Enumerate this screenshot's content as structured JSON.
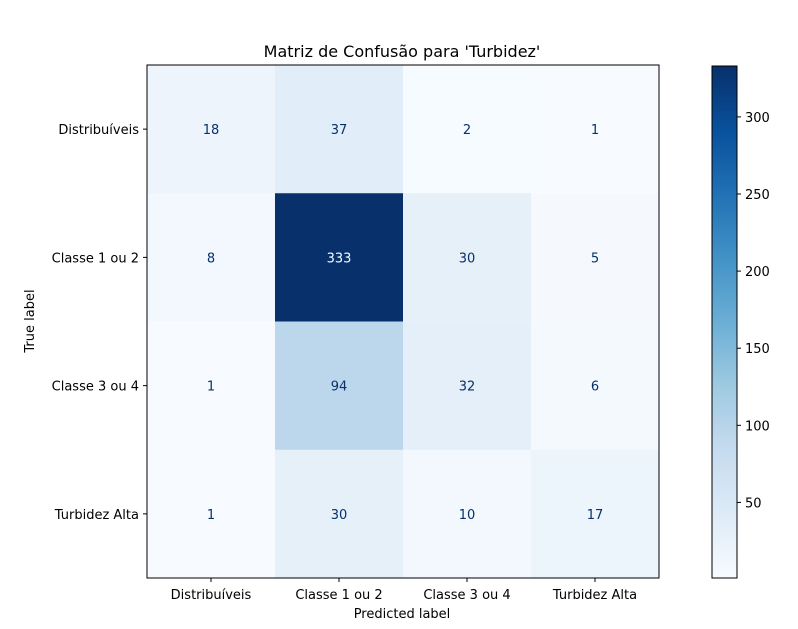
{
  "chart_data": {
    "type": "heatmap",
    "title": "Matriz de Confusão para 'Turbidez'",
    "xlabel": "Predicted label",
    "ylabel": "True label",
    "x_categories": [
      "Distribuíveis",
      "Classe 1 ou 2",
      "Classe 3 ou 4",
      "Turbidez Alta"
    ],
    "y_categories": [
      "Distribuíveis",
      "Classe 1 ou 2",
      "Classe 3 ou 4",
      "Turbidez Alta"
    ],
    "values": [
      [
        18,
        37,
        2,
        1
      ],
      [
        8,
        333,
        30,
        5
      ],
      [
        1,
        94,
        32,
        6
      ],
      [
        1,
        30,
        10,
        17
      ]
    ],
    "colormap": "Blues",
    "color_range": [
      1,
      333
    ],
    "colorbar_ticks": [
      50,
      100,
      150,
      200,
      250,
      300
    ],
    "grid": false
  }
}
